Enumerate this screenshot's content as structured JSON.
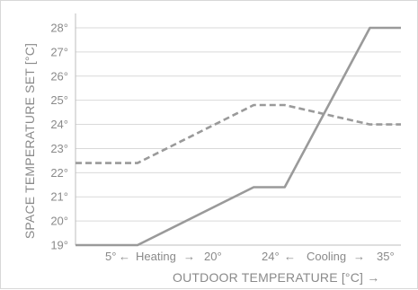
{
  "chart_data": {
    "type": "line",
    "xlabel": "OUTDOOR TEMPERATURE [°C] →",
    "ylabel": "SPACE TEMPERATURE SET [°C]",
    "ylim": [
      19,
      28
    ],
    "xlim": [
      -3,
      39
    ],
    "yticks": [
      19,
      20,
      21,
      22,
      23,
      24,
      25,
      26,
      27,
      28
    ],
    "ytick_labels": [
      "19°",
      "20°",
      "21°",
      "22°",
      "23°",
      "24°",
      "25°",
      "26°",
      "27°",
      "28°"
    ],
    "grid": "horizontal",
    "series": [
      {
        "style": "solid",
        "x": [
          -3,
          5,
          20,
          24,
          35,
          39
        ],
        "y": [
          19,
          19,
          21.4,
          21.4,
          28,
          28
        ]
      },
      {
        "style": "dashed",
        "x": [
          -3,
          5,
          20,
          24,
          35,
          39
        ],
        "y": [
          22.4,
          22.4,
          24.8,
          24.8,
          24,
          24
        ]
      }
    ],
    "annotations": {
      "t5": "5°",
      "heating_left_arrow": "←",
      "heating": "Heating",
      "heating_right_arrow": "→",
      "t20": "20°",
      "t24": "24°",
      "cooling_left_arrow": "←",
      "cooling": "Cooling",
      "cooling_right_arrow": "→",
      "t35": "35°"
    },
    "colors": {
      "line": "#9a9a9a",
      "grid": "#d9d9d9",
      "axis": "#bdbdbd",
      "text": "#8a8a8a"
    }
  }
}
